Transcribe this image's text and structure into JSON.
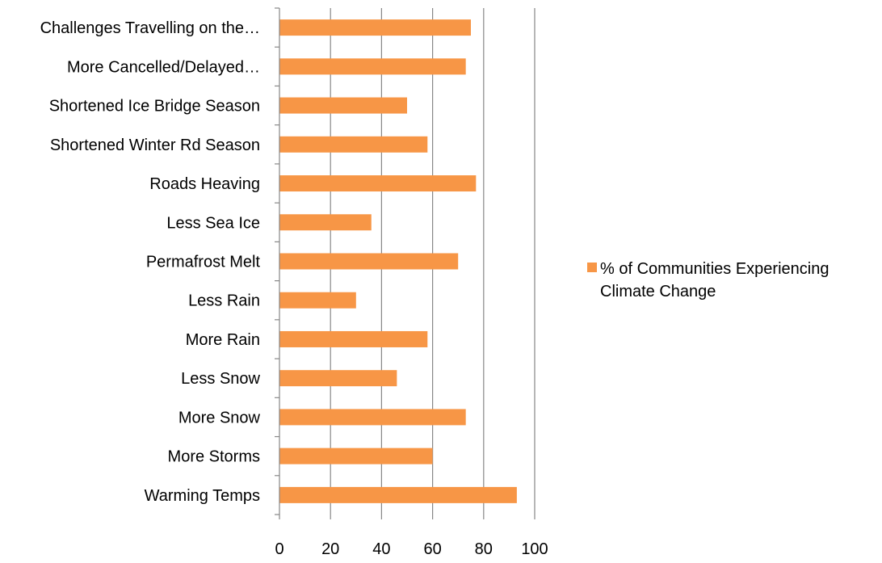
{
  "chart_data": {
    "type": "bar",
    "orientation": "horizontal",
    "categories": [
      "Challenges Travelling on the…",
      "More Cancelled/Delayed…",
      "Shortened Ice Bridge Season",
      "Shortened Winter Rd Season",
      "Roads Heaving",
      "Less Sea Ice",
      "Permafrost Melt",
      "Less Rain",
      "More Rain",
      "Less Snow",
      "More Snow",
      "More Storms",
      "Warming Temps"
    ],
    "series": [
      {
        "name": "% of Communities Experiencing Climate Change",
        "values": [
          75,
          73,
          50,
          58,
          77,
          36,
          70,
          30,
          58,
          46,
          73,
          60,
          93
        ],
        "color": "#F79646"
      }
    ],
    "xlim": [
      0,
      100
    ],
    "xticks": [
      0,
      20,
      40,
      60,
      80,
      100
    ],
    "grid": "vertical",
    "legend_position": "right"
  }
}
